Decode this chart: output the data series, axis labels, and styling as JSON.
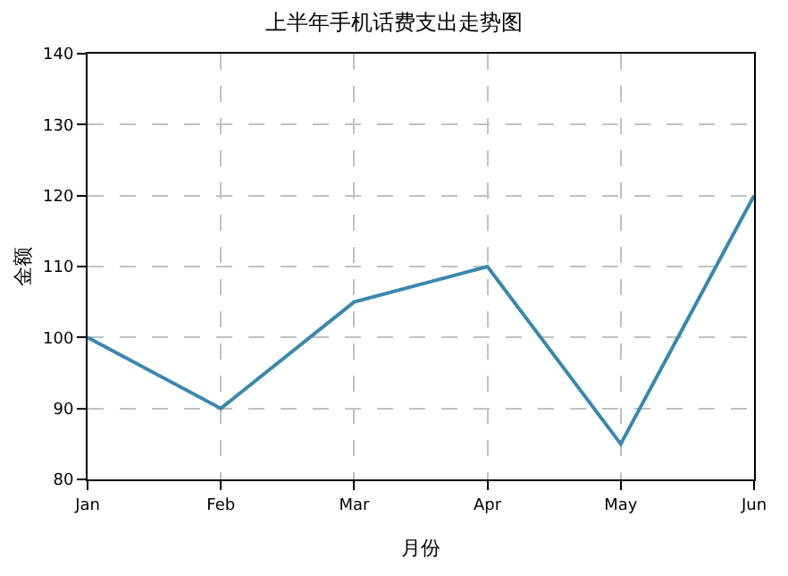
{
  "chart_data": {
    "type": "line",
    "title": "上半年手机话费支出走势图",
    "xlabel": "月份",
    "ylabel": "金额",
    "categories": [
      "Jan",
      "Feb",
      "Mar",
      "Apr",
      "May",
      "Jun"
    ],
    "series": [
      {
        "color": "#3a87ae",
        "values": [
          100,
          90,
          105,
          110,
          85,
          120
        ]
      }
    ],
    "ylim": [
      80,
      140
    ],
    "yticks": [
      80,
      90,
      100,
      110,
      120,
      130,
      140
    ],
    "grid": true,
    "line_style": "solid",
    "marker": "none"
  }
}
